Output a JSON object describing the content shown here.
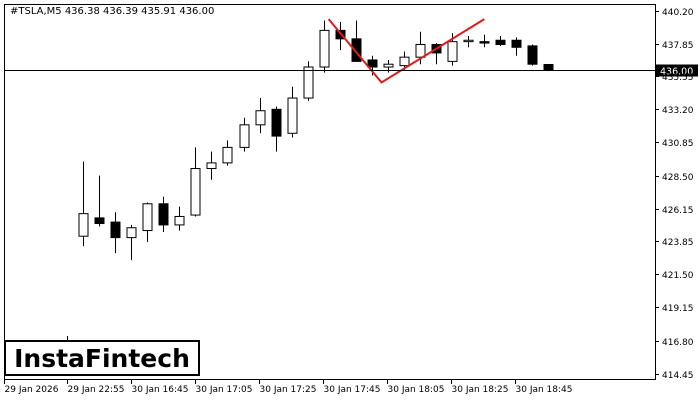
{
  "chart_data": {
    "type": "candlestick",
    "symbol_header": "#TSLA,M5  436.38 436.39 435.91 436.00",
    "current_price_label": "436.00",
    "y_ticks": [
      "440.20",
      "437.85",
      "435.55",
      "433.20",
      "430.85",
      "428.50",
      "426.15",
      "423.85",
      "421.50",
      "419.15",
      "416.80",
      "414.45"
    ],
    "x_ticks": [
      "29 Jan 2026",
      "29 Jan 22:55",
      "30 Jan 16:45",
      "30 Jan 17:05",
      "30 Jan 17:25",
      "30 Jan 17:45",
      "30 Jan 18:05",
      "30 Jan 18:25",
      "30 Jan 18:45"
    ],
    "ylim": [
      414.0,
      440.6
    ],
    "current_price": 436.0,
    "candles": [
      {
        "o": 424.2,
        "h": 429.5,
        "l": 423.5,
        "c": 425.8
      },
      {
        "o": 425.5,
        "h": 428.5,
        "l": 424.9,
        "c": 425.1
      },
      {
        "o": 425.2,
        "h": 425.9,
        "l": 423.0,
        "c": 424.1
      },
      {
        "o": 424.1,
        "h": 425.0,
        "l": 422.5,
        "c": 424.8
      },
      {
        "o": 424.6,
        "h": 426.6,
        "l": 423.8,
        "c": 426.5
      },
      {
        "o": 426.5,
        "h": 427.0,
        "l": 424.5,
        "c": 425.0
      },
      {
        "o": 425.0,
        "h": 426.3,
        "l": 424.6,
        "c": 425.6
      },
      {
        "o": 425.7,
        "h": 430.5,
        "l": 425.6,
        "c": 429.0
      },
      {
        "o": 429.0,
        "h": 430.2,
        "l": 428.2,
        "c": 429.4
      },
      {
        "o": 429.4,
        "h": 431.0,
        "l": 429.2,
        "c": 430.5
      },
      {
        "o": 430.5,
        "h": 432.6,
        "l": 430.2,
        "c": 432.1
      },
      {
        "o": 432.1,
        "h": 434.0,
        "l": 431.5,
        "c": 433.1
      },
      {
        "o": 433.2,
        "h": 433.4,
        "l": 430.2,
        "c": 431.3
      },
      {
        "o": 431.5,
        "h": 434.8,
        "l": 431.2,
        "c": 434.0
      },
      {
        "o": 434.0,
        "h": 436.6,
        "l": 433.8,
        "c": 436.2
      },
      {
        "o": 436.2,
        "h": 439.5,
        "l": 435.8,
        "c": 438.8
      },
      {
        "o": 438.8,
        "h": 439.4,
        "l": 437.4,
        "c": 438.2
      },
      {
        "o": 438.2,
        "h": 439.5,
        "l": 436.6,
        "c": 436.6
      },
      {
        "o": 436.7,
        "h": 437.0,
        "l": 435.6,
        "c": 436.2
      },
      {
        "o": 436.2,
        "h": 436.7,
        "l": 435.8,
        "c": 436.4
      },
      {
        "o": 436.3,
        "h": 437.3,
        "l": 436.0,
        "c": 436.9
      },
      {
        "o": 436.9,
        "h": 438.7,
        "l": 436.4,
        "c": 437.8
      },
      {
        "o": 437.8,
        "h": 437.9,
        "l": 436.4,
        "c": 437.2
      },
      {
        "o": 436.6,
        "h": 438.6,
        "l": 436.3,
        "c": 438.0
      },
      {
        "o": 438.0,
        "h": 438.4,
        "l": 437.6,
        "c": 438.1
      },
      {
        "o": 438.0,
        "h": 438.5,
        "l": 437.6,
        "c": 437.9
      },
      {
        "o": 438.1,
        "h": 438.4,
        "l": 437.7,
        "c": 437.8
      },
      {
        "o": 438.1,
        "h": 438.3,
        "l": 437.0,
        "c": 437.6
      },
      {
        "o": 437.7,
        "h": 437.8,
        "l": 436.3,
        "c": 436.4
      },
      {
        "o": 436.38,
        "h": 436.39,
        "l": 435.91,
        "c": 436.0
      }
    ],
    "pattern": {
      "name": "double top",
      "color": "#e11b1b",
      "points": [
        {
          "candle": 15.3,
          "price": 439.6
        },
        {
          "candle": 18.6,
          "price": 435.1
        },
        {
          "candle": 25.0,
          "price": 439.6
        }
      ]
    },
    "colors": {
      "bull_fill": "#ffffff",
      "bear_fill": "#000000",
      "line": "#000000",
      "axis": "#000000",
      "price_label_bg": "#000000",
      "price_label_text": "#ffffff"
    }
  },
  "logo_text": "InstaFintech"
}
